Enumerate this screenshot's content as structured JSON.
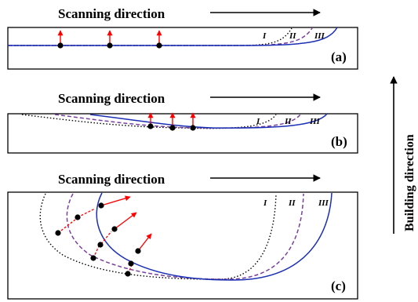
{
  "labels": {
    "scanning_direction": "Scanning direction",
    "building_direction": "Building direction",
    "roman_1": "I",
    "roman_2": "II",
    "roman_3": "III"
  },
  "panels": [
    {
      "id": "a",
      "tag": "(a)"
    },
    {
      "id": "b",
      "tag": "(b)"
    },
    {
      "id": "c",
      "tag": "(c)"
    }
  ],
  "colors": {
    "curve_I": "#000000",
    "curve_II": "#7b3fa0",
    "curve_III": "#1a2fb5",
    "arrow": "#ff0000",
    "frame": "#000000"
  },
  "curve_styles": {
    "I": "dotted",
    "II": "dashed",
    "III": "solid"
  }
}
